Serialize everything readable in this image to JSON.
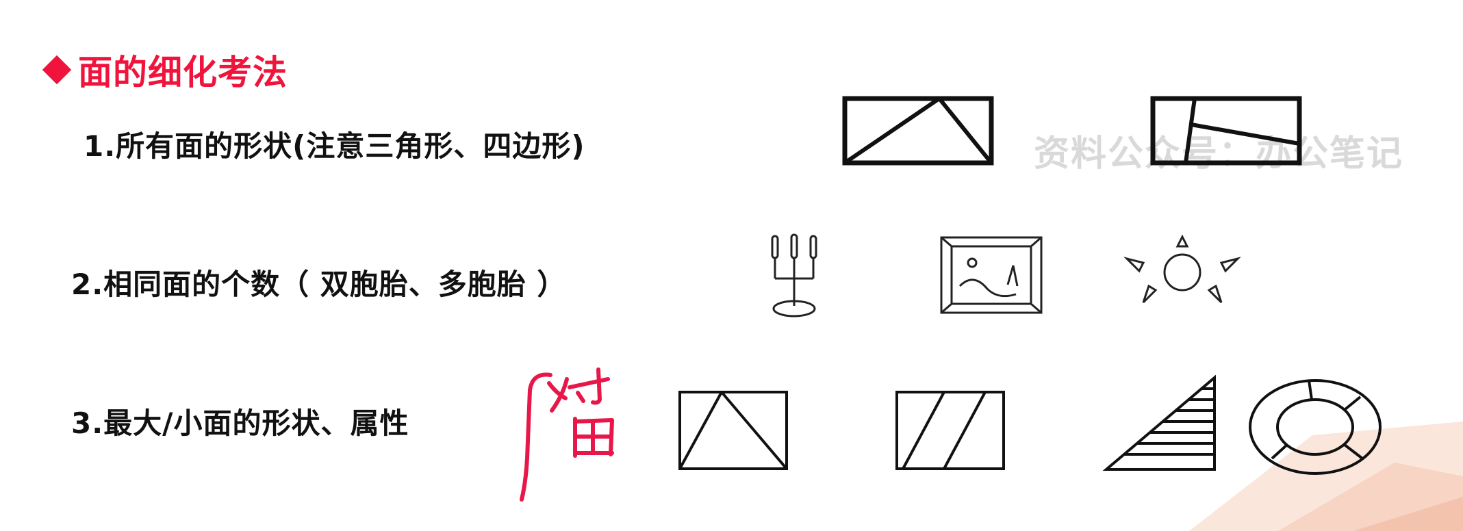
{
  "heading": {
    "text": "面的细化考法"
  },
  "items": [
    {
      "text": "1.所有面的形状(注意三角形、四边形)"
    },
    {
      "text": "2.相同面的个数（ 双胞胎、多胞胎 ）"
    },
    {
      "text": "3.最大/小面的形状、属性"
    }
  ],
  "watermark": {
    "text": "资料公众号：办公笔记"
  },
  "handwriting": {
    "text": "对面"
  },
  "colors": {
    "accent": "#f0143c",
    "ink": "#111111",
    "handwriting": "#e8174a",
    "watermark": "#aaaaaa"
  }
}
